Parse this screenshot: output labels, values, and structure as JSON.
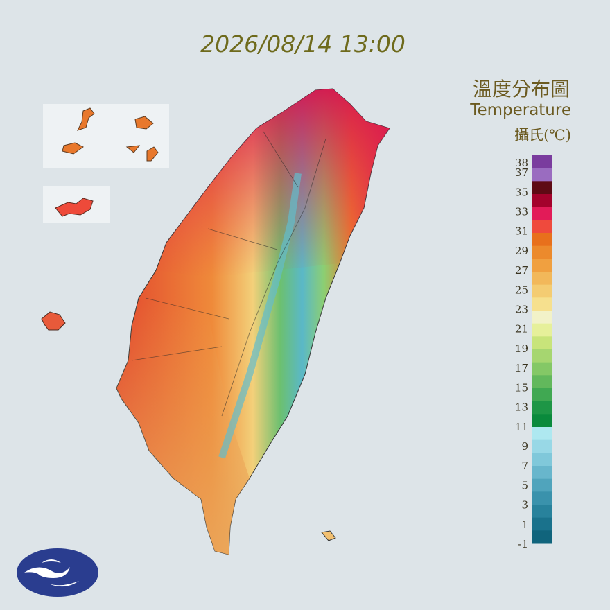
{
  "timestamp": "2026/08/14 13:00",
  "title": "溫度分布圖",
  "subtitle": "Temperature",
  "unit": "攝氏(℃)",
  "legend": {
    "labels": [
      38,
      37,
      35,
      33,
      31,
      29,
      27,
      25,
      23,
      21,
      19,
      17,
      15,
      13,
      11,
      9,
      7,
      5,
      3,
      1,
      -1
    ],
    "colors": [
      "#7a3c9e",
      "#9a6cc0",
      "#5e0a14",
      "#a4022c",
      "#e21b58",
      "#ef4a3d",
      "#e8701c",
      "#ec8a2c",
      "#f0a040",
      "#f2b85a",
      "#f4cc72",
      "#f6e08e",
      "#f2f2c8",
      "#e6f09a",
      "#c8e47a",
      "#a6d670",
      "#84c866",
      "#62b85c",
      "#40a852",
      "#1e9646",
      "#0a8a3c",
      "#aee8f0",
      "#98d8e6",
      "#80c8da",
      "#68b6cc",
      "#50a4bc",
      "#3a92ac",
      "#28829c",
      "#1a728c",
      "#10647c"
    ]
  }
}
